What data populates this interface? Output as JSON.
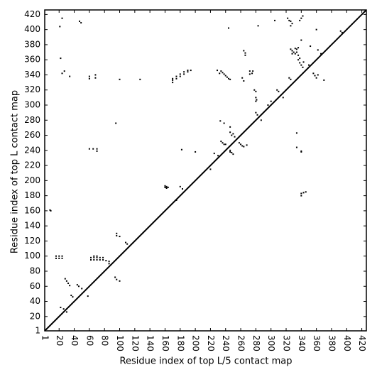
{
  "chart_data": {
    "type": "scatter",
    "xlabel": "Residue index of top L/5 contact map",
    "ylabel": "Residue index of top L contact map",
    "xlim": [
      1,
      426
    ],
    "ylim": [
      1,
      426
    ],
    "xticks": [
      1,
      20,
      40,
      60,
      80,
      100,
      120,
      140,
      160,
      180,
      200,
      220,
      240,
      260,
      280,
      300,
      320,
      340,
      360,
      380,
      400,
      420
    ],
    "yticks": [
      1,
      20,
      40,
      60,
      80,
      100,
      120,
      140,
      160,
      180,
      200,
      220,
      240,
      260,
      280,
      300,
      320,
      340,
      360,
      380,
      400,
      420
    ],
    "diagonal": true,
    "series": [
      {
        "color": "#000000",
        "x": [
          21,
          24,
          47,
          49,
          8,
          9,
          16,
          20,
          24,
          16,
          20,
          24,
          22,
          24,
          27,
          34,
          60,
          60,
          68,
          68,
          100,
          127,
          60,
          65,
          70,
          70,
          62,
          62,
          66,
          66,
          66,
          70,
          70,
          70,
          74,
          74,
          78,
          78,
          82,
          86,
          86,
          94,
          96,
          100,
          96,
          96,
          100,
          108,
          110,
          95,
          22,
          26,
          30,
          28,
          30,
          32,
          34,
          36,
          38,
          44,
          46,
          50,
          58,
          160,
          160,
          162,
          162,
          164,
          175,
          180,
          183,
          170,
          170,
          170,
          175,
          175,
          180,
          180,
          185,
          185,
          190,
          190,
          194,
          182,
          200,
          220,
          225,
          230,
          234,
          236,
          238,
          240,
          242,
          244,
          246,
          232,
          229,
          233,
          238,
          250,
          248,
          252,
          246,
          234,
          236,
          238,
          240,
          244,
          246,
          246,
          248,
          250,
          246,
          258,
          260,
          262,
          264,
          268,
          264,
          266,
          266,
          272,
          275,
          272,
          276,
          262,
          264,
          278,
          280,
          280,
          281,
          280,
          280,
          282,
          283,
          287,
          296,
          300,
          305,
          308,
          310,
          316,
          322,
          324,
          326,
          328,
          326,
          324,
          326,
          326,
          328,
          330,
          332,
          334,
          334,
          336,
          328,
          332,
          336,
          336,
          338,
          340,
          342,
          338,
          343,
          338,
          340,
          342,
          340,
          334,
          334,
          340,
          340,
          340,
          343,
          346,
          340,
          350,
          352,
          356,
          358,
          360,
          362,
          360,
          362,
          366,
          370,
          392,
          394
        ],
        "values": [
          404,
          415,
          411,
          409,
          161,
          160,
          97,
          97,
          97,
          100,
          100,
          100,
          362,
          342,
          345,
          338,
          335,
          338,
          336,
          340,
          334,
          334,
          242,
          242,
          242,
          239,
          95,
          98,
          95,
          98,
          100,
          95,
          98,
          100,
          95,
          98,
          95,
          98,
          94,
          90,
          93,
          72,
          69,
          67,
          130,
          127,
          126,
          118,
          116,
          276,
          32,
          30,
          26,
          70,
          67,
          64,
          61,
          48,
          46,
          62,
          60,
          57,
          47,
          191,
          193,
          190,
          192,
          191,
          174,
          192,
          189,
          330,
          333,
          335,
          335,
          338,
          338,
          341,
          341,
          344,
          344,
          346,
          346,
          241,
          238,
          215,
          236,
          233,
          345,
          343,
          341,
          339,
          337,
          335,
          334,
          342,
          346,
          279,
          276,
          262,
          260,
          258,
          264,
          252,
          250,
          248,
          248,
          402,
          271,
          240,
          237,
          235,
          238,
          250,
          248,
          246,
          245,
          247,
          372,
          369,
          366,
          345,
          342,
          341,
          345,
          336,
          332,
          320,
          318,
          310,
          307,
          305,
          290,
          287,
          405,
          280,
          300,
          305,
          412,
          320,
          318,
          310,
          415,
          412,
          411,
          408,
          405,
          336,
          334,
          374,
          372,
          370,
          368,
          374,
          370,
          366,
          368,
          375,
          376,
          360,
          356,
          353,
          350,
          362,
          357,
          412,
          415,
          418,
          386,
          263,
          244,
          238,
          239,
          180,
          184,
          185,
          183,
          353,
          378,
          342,
          339,
          336,
          340,
          400,
          373,
          368,
          333,
          398,
          396
        ]
      }
    ]
  }
}
